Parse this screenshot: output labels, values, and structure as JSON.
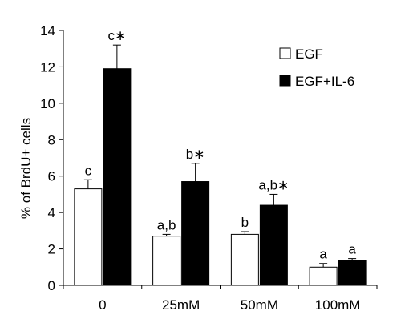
{
  "chart_data": {
    "type": "bar",
    "title": "",
    "xlabel": "",
    "ylabel": "% of BrdU+ cells",
    "ylim": [
      0,
      14
    ],
    "yticks": [
      0,
      2,
      4,
      6,
      8,
      10,
      12,
      14
    ],
    "ytick_labels": [
      "0",
      "2",
      "4",
      "6",
      "8",
      "10",
      "12",
      "14"
    ],
    "categories": [
      "0",
      "25mM",
      "50mM",
      "100mM"
    ],
    "series": [
      {
        "name": "EGF",
        "color": "#ffffff",
        "values": [
          5.3,
          2.7,
          2.8,
          1.0
        ],
        "errors": [
          0.5,
          0.1,
          0.15,
          0.2
        ],
        "labels": [
          "c",
          "a,b",
          "b",
          "a"
        ]
      },
      {
        "name": "EGF+IL-6",
        "color": "#000000",
        "values": [
          11.9,
          5.7,
          4.4,
          1.35
        ],
        "errors": [
          1.3,
          1.0,
          0.6,
          0.12
        ],
        "labels": [
          "c∗",
          "b∗",
          "a,b∗",
          "a"
        ]
      }
    ],
    "legend_position": "top-right",
    "grid": false
  }
}
